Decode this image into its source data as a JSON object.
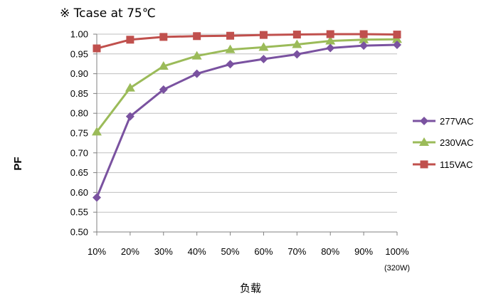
{
  "chart_data": {
    "type": "line",
    "title": "※ Tcase at 75℃",
    "xlabel": "负载",
    "ylabel": "PF",
    "categories": [
      "10%",
      "20%",
      "30%",
      "40%",
      "50%",
      "60%",
      "70%",
      "80%",
      "90%",
      "100%"
    ],
    "x_note": "(320W)",
    "ylim": [
      0.5,
      1.0
    ],
    "yticks": [
      "0.50",
      "0.55",
      "0.60",
      "0.65",
      "0.70",
      "0.75",
      "0.80",
      "0.85",
      "0.90",
      "0.95",
      "1.00"
    ],
    "grid": "horizontal",
    "legend_position": "right",
    "series": [
      {
        "name": "277VAC",
        "color": "#7a52a0",
        "marker": "diamond",
        "values": [
          0.587,
          0.792,
          0.86,
          0.9,
          0.924,
          0.937,
          0.949,
          0.965,
          0.971,
          0.973
        ]
      },
      {
        "name": "230VAC",
        "color": "#9bbb59",
        "marker": "triangle",
        "values": [
          0.753,
          0.864,
          0.919,
          0.945,
          0.961,
          0.967,
          0.974,
          0.983,
          0.986,
          0.987
        ]
      },
      {
        "name": "115VAC",
        "color": "#c0504d",
        "marker": "square",
        "values": [
          0.964,
          0.986,
          0.993,
          0.995,
          0.996,
          0.998,
          0.999,
          1.0,
          1.0,
          0.999
        ]
      }
    ]
  }
}
